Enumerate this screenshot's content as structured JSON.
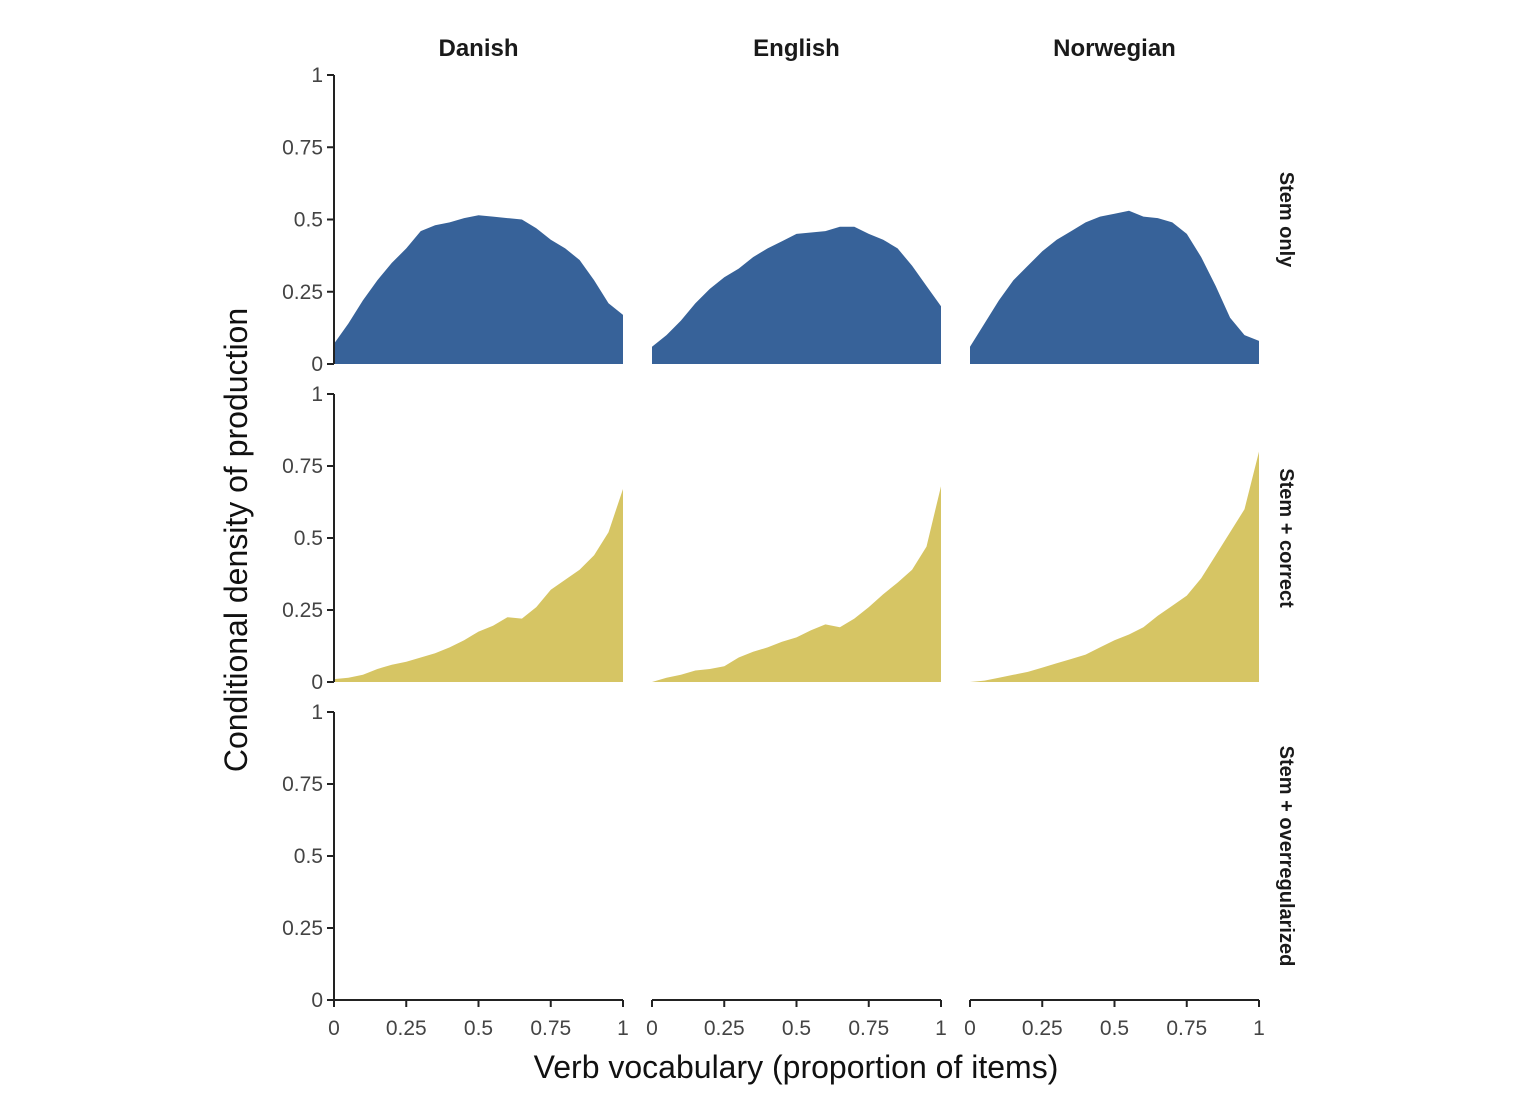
{
  "chart_data": {
    "type": "area",
    "layout": "facet-grid",
    "xlabel": "Verb vocabulary (proportion of items)",
    "ylabel": "Conditional density of production",
    "xlim": [
      0,
      1
    ],
    "ylim": [
      0,
      1
    ],
    "x_ticks": [
      "0",
      "0.25",
      "0.5",
      "0.75",
      "1"
    ],
    "y_ticks": [
      "0",
      "0.25",
      "0.5",
      "0.75",
      "1"
    ],
    "columns": [
      "Danish",
      "English",
      "Norwegian"
    ],
    "rows": [
      {
        "label": "Stem only",
        "color": "#376299"
      },
      {
        "label": "Stem + correct",
        "color": "#d6c564"
      },
      {
        "label": "Stem + overregularized",
        "color": "#d95f3b"
      }
    ],
    "panels": [
      {
        "row": "Stem only",
        "column": "Danish",
        "x": [
          0,
          0.05,
          0.1,
          0.15,
          0.2,
          0.25,
          0.3,
          0.35,
          0.4,
          0.45,
          0.5,
          0.55,
          0.6,
          0.65,
          0.7,
          0.75,
          0.8,
          0.85,
          0.9,
          0.95,
          1
        ],
        "y": [
          0.07,
          0.14,
          0.22,
          0.29,
          0.35,
          0.4,
          0.46,
          0.48,
          0.49,
          0.505,
          0.515,
          0.51,
          0.505,
          0.5,
          0.47,
          0.43,
          0.4,
          0.36,
          0.29,
          0.21,
          0.17
        ]
      },
      {
        "row": "Stem only",
        "column": "English",
        "x": [
          0,
          0.05,
          0.1,
          0.15,
          0.2,
          0.25,
          0.3,
          0.35,
          0.4,
          0.45,
          0.5,
          0.55,
          0.6,
          0.65,
          0.7,
          0.75,
          0.8,
          0.85,
          0.9,
          0.95,
          1
        ],
        "y": [
          0.06,
          0.1,
          0.15,
          0.21,
          0.26,
          0.3,
          0.33,
          0.37,
          0.4,
          0.425,
          0.45,
          0.455,
          0.46,
          0.475,
          0.475,
          0.45,
          0.43,
          0.4,
          0.34,
          0.27,
          0.2
        ]
      },
      {
        "row": "Stem only",
        "column": "Norwegian",
        "x": [
          0,
          0.05,
          0.1,
          0.15,
          0.2,
          0.25,
          0.3,
          0.35,
          0.4,
          0.45,
          0.5,
          0.55,
          0.6,
          0.65,
          0.7,
          0.75,
          0.8,
          0.85,
          0.9,
          0.95,
          1
        ],
        "y": [
          0.06,
          0.14,
          0.22,
          0.29,
          0.34,
          0.39,
          0.43,
          0.46,
          0.49,
          0.51,
          0.52,
          0.53,
          0.51,
          0.505,
          0.49,
          0.45,
          0.37,
          0.27,
          0.16,
          0.1,
          0.08
        ]
      },
      {
        "row": "Stem + correct",
        "column": "Danish",
        "x": [
          0,
          0.05,
          0.1,
          0.15,
          0.2,
          0.25,
          0.3,
          0.35,
          0.4,
          0.45,
          0.5,
          0.55,
          0.6,
          0.65,
          0.7,
          0.75,
          0.8,
          0.85,
          0.9,
          0.95,
          1
        ],
        "y": [
          0.01,
          0.015,
          0.025,
          0.045,
          0.06,
          0.07,
          0.085,
          0.1,
          0.12,
          0.145,
          0.175,
          0.195,
          0.225,
          0.22,
          0.26,
          0.32,
          0.355,
          0.39,
          0.44,
          0.52,
          0.67
        ]
      },
      {
        "row": "Stem + correct",
        "column": "English",
        "x": [
          0,
          0.05,
          0.1,
          0.15,
          0.2,
          0.25,
          0.3,
          0.35,
          0.4,
          0.45,
          0.5,
          0.55,
          0.6,
          0.65,
          0.7,
          0.75,
          0.8,
          0.85,
          0.9,
          0.95,
          1
        ],
        "y": [
          0.0,
          0.015,
          0.025,
          0.04,
          0.045,
          0.055,
          0.085,
          0.105,
          0.12,
          0.14,
          0.155,
          0.18,
          0.2,
          0.19,
          0.22,
          0.26,
          0.305,
          0.345,
          0.39,
          0.47,
          0.68
        ]
      },
      {
        "row": "Stem + correct",
        "column": "Norwegian",
        "x": [
          0,
          0.05,
          0.1,
          0.15,
          0.2,
          0.25,
          0.3,
          0.35,
          0.4,
          0.45,
          0.5,
          0.55,
          0.6,
          0.65,
          0.7,
          0.75,
          0.8,
          0.85,
          0.9,
          0.95,
          1
        ],
        "y": [
          0.0,
          0.005,
          0.015,
          0.025,
          0.035,
          0.05,
          0.065,
          0.08,
          0.095,
          0.12,
          0.145,
          0.165,
          0.19,
          0.23,
          0.265,
          0.3,
          0.36,
          0.44,
          0.52,
          0.6,
          0.8
        ]
      },
      {
        "row": "Stem + overregularized",
        "column": "Danish",
        "x": [],
        "y": []
      },
      {
        "row": "Stem + overregularized",
        "column": "English",
        "x": [],
        "y": []
      },
      {
        "row": "Stem + overregularized",
        "column": "Norwegian",
        "x": [],
        "y": []
      }
    ],
    "grid": false,
    "legend": "none"
  }
}
